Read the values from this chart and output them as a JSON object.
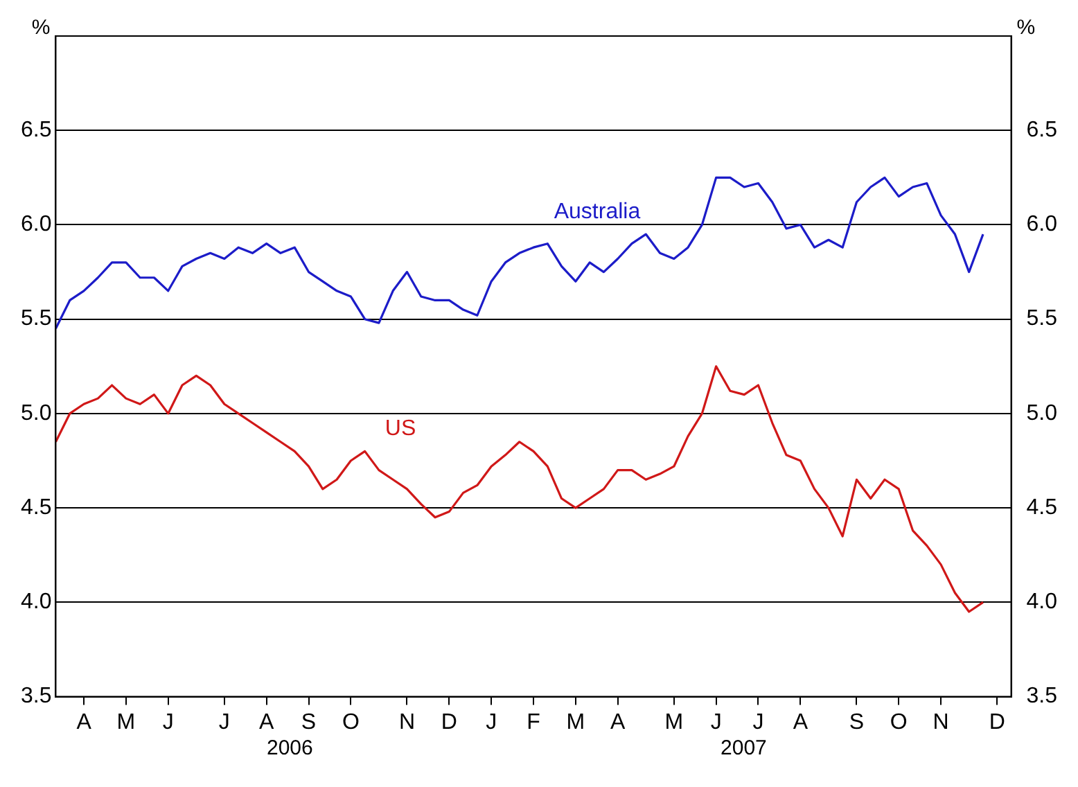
{
  "chart_data": {
    "type": "line",
    "ylabel": "%",
    "y2label": "%",
    "categories": [
      null,
      null,
      "A",
      null,
      null,
      "M",
      null,
      null,
      "J",
      null,
      null,
      null,
      "J",
      null,
      null,
      "A",
      null,
      null,
      "S",
      null,
      null,
      "O",
      null,
      null,
      null,
      "N",
      null,
      null,
      "D",
      null,
      null,
      "J",
      null,
      null,
      "F",
      null,
      null,
      "M",
      null,
      null,
      "A",
      null,
      null,
      null,
      "M",
      null,
      null,
      "J",
      null,
      null,
      "J",
      null,
      null,
      "A",
      null,
      null,
      null,
      "S",
      null,
      null,
      "O",
      null,
      null,
      "N",
      null,
      null,
      null,
      "D",
      null
    ],
    "series": [
      {
        "name": "Australia",
        "color": "#1c1cc8",
        "values": [
          5.45,
          5.6,
          5.65,
          5.72,
          5.8,
          5.8,
          5.72,
          5.72,
          5.65,
          5.78,
          5.82,
          5.85,
          5.82,
          5.88,
          5.85,
          5.9,
          5.85,
          5.88,
          5.75,
          5.7,
          5.65,
          5.62,
          5.5,
          5.48,
          5.65,
          5.75,
          5.62,
          5.6,
          5.6,
          5.55,
          5.52,
          5.7,
          5.8,
          5.85,
          5.88,
          5.9,
          5.78,
          5.7,
          5.8,
          5.75,
          5.82,
          5.9,
          5.95,
          5.85,
          5.82,
          5.88,
          6.0,
          6.25,
          6.25,
          6.2,
          6.22,
          6.12,
          5.98,
          6.0,
          5.88,
          5.92,
          5.88,
          6.12,
          6.2,
          6.25,
          6.15,
          6.2,
          6.22,
          6.05,
          5.95,
          5.75,
          5.95,
          null,
          null
        ]
      },
      {
        "name": "US",
        "color": "#d01818",
        "values": [
          4.85,
          5.0,
          5.05,
          5.08,
          5.15,
          5.08,
          5.05,
          5.1,
          5.0,
          5.15,
          5.2,
          5.15,
          5.05,
          5.0,
          4.95,
          4.9,
          4.85,
          4.8,
          4.72,
          4.6,
          4.65,
          4.75,
          4.8,
          4.7,
          4.65,
          4.6,
          4.52,
          4.45,
          4.48,
          4.58,
          4.62,
          4.72,
          4.78,
          4.85,
          4.8,
          4.72,
          4.55,
          4.5,
          4.55,
          4.6,
          4.7,
          4.7,
          4.65,
          4.68,
          4.72,
          4.88,
          5.0,
          5.25,
          5.12,
          5.1,
          5.15,
          4.95,
          4.78,
          4.75,
          4.6,
          4.5,
          4.35,
          4.65,
          4.55,
          4.65,
          4.6,
          4.38,
          4.3,
          4.2,
          4.05,
          3.95,
          4.0,
          null,
          null
        ]
      }
    ],
    "ylim": [
      3.5,
      7.0
    ],
    "yticks": [
      3.5,
      {
        "value": 4,
        "label": "4.0"
      },
      4.5,
      {
        "value": 5,
        "label": "5.0"
      },
      5.5,
      {
        "value": 6,
        "label": "6.0"
      },
      6.5
    ],
    "y2lim": [
      3.5,
      7.0
    ],
    "y2ticks": [
      3.5,
      {
        "value": 4,
        "label": "4.0"
      },
      4.5,
      {
        "value": 5,
        "label": "5.0"
      },
      5.5,
      {
        "value": 6,
        "label": "6.0"
      },
      6.5
    ],
    "annotations": [
      "2006",
      "2007"
    ],
    "grid": "y",
    "legend": false,
    "marker": "none",
    "line_style": "solid"
  }
}
